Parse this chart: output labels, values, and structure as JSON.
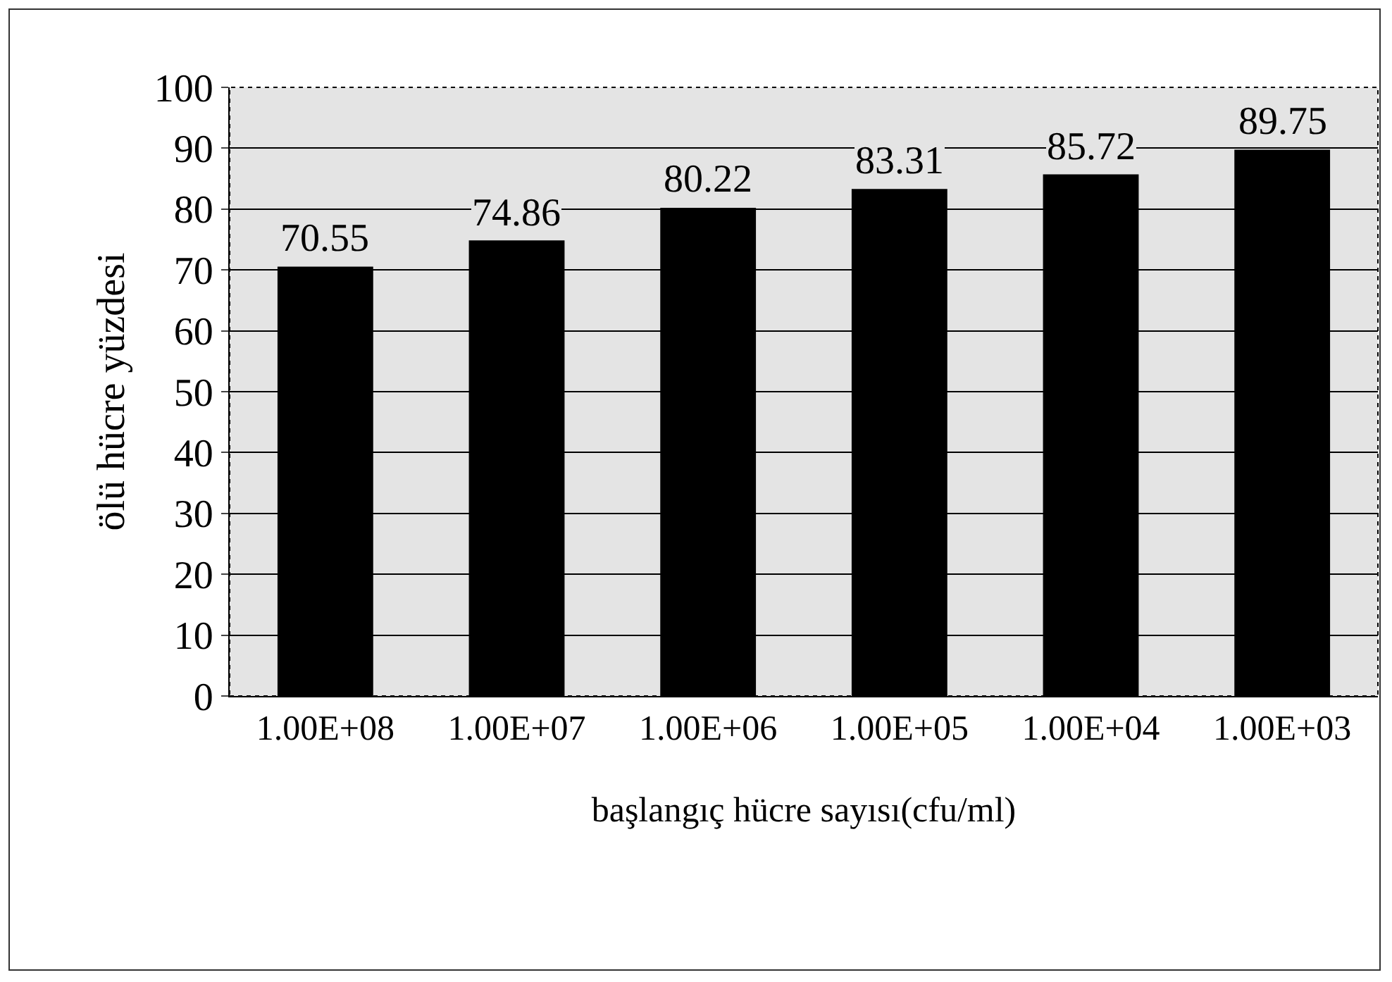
{
  "chart_data": {
    "type": "bar",
    "xlabel": "başlangıç hücre sayısı(cfu/ml)",
    "ylabel": "ölü hücre yüzdesi",
    "categories": [
      "1.00E+08",
      "1.00E+07",
      "1.00E+06",
      "1.00E+05",
      "1.00E+04",
      "1.00E+03"
    ],
    "values": [
      70.55,
      74.86,
      80.22,
      83.31,
      85.72,
      89.75
    ],
    "color": "#000000",
    "ylim": [
      0,
      100
    ],
    "yticks": [
      0,
      10,
      20,
      30,
      40,
      50,
      60,
      70,
      80,
      90,
      100
    ],
    "grid": "y",
    "data_labels": true,
    "legend": false
  }
}
